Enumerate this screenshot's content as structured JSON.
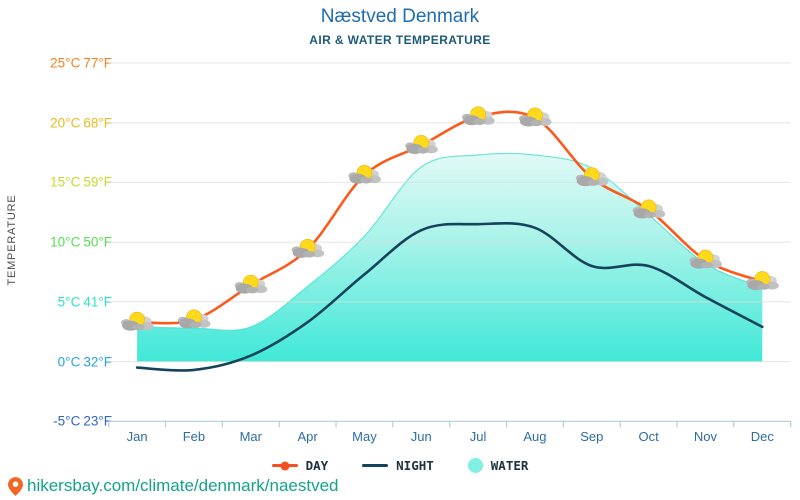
{
  "title": "Næstved Denmark",
  "subtitle": "AIR & WATER TEMPERATURE",
  "y_axis": {
    "label": "TEMPERATURE",
    "ticks": [
      {
        "celsius": "25°C",
        "fahrenheit": "77°F",
        "value": 25,
        "color": "#f5821f"
      },
      {
        "celsius": "20°C",
        "fahrenheit": "68°F",
        "value": 20,
        "color": "#eaba20"
      },
      {
        "celsius": "15°C",
        "fahrenheit": "59°F",
        "value": 15,
        "color": "#c4dc29"
      },
      {
        "celsius": "10°C",
        "fahrenheit": "50°F",
        "value": 10,
        "color": "#55df4d"
      },
      {
        "celsius": "5°C",
        "fahrenheit": "41°F",
        "value": 5,
        "color": "#2be4c5"
      },
      {
        "celsius": "0°C",
        "fahrenheit": "32°F",
        "value": 0,
        "color": "#2aa2df"
      },
      {
        "celsius": "-5°C",
        "fahrenheit": "23°F",
        "value": -5,
        "color": "#2f66c5"
      }
    ]
  },
  "legend": [
    {
      "label": "DAY",
      "type": "line-dot",
      "color": "#f4511e"
    },
    {
      "label": "NIGHT",
      "type": "line",
      "color": "#16435c"
    },
    {
      "label": "WATER",
      "type": "dot",
      "color": "#7ff0e3"
    }
  ],
  "footer": {
    "url": "hikersbay.com/climate/denmark/naestved",
    "pin_color": "#f26522"
  },
  "marker_icon": "sun-behind-cloud-icon",
  "chart_data": {
    "type": "line",
    "title": "Næstved Denmark",
    "subtitle": "AIR & WATER TEMPERATURE",
    "ylabel": "TEMPERATURE",
    "units": "°C",
    "ylim": [
      -5,
      25
    ],
    "area_baseline": 0,
    "grid": "horizontal",
    "legend_position": "bottom",
    "categories": [
      "Jan",
      "Feb",
      "Mar",
      "Apr",
      "May",
      "Jun",
      "Jul",
      "Aug",
      "Sep",
      "Oct",
      "Nov",
      "Dec"
    ],
    "series": [
      {
        "name": "DAY",
        "style": "line-markers",
        "color": "#fb5a1c",
        "values": [
          3.3,
          3.5,
          6.4,
          9.4,
          15.6,
          18.1,
          20.5,
          20.4,
          15.4,
          12.7,
          8.5,
          6.7
        ]
      },
      {
        "name": "NIGHT",
        "style": "line",
        "color": "#16435c",
        "values": [
          -0.5,
          -0.7,
          0.5,
          3.3,
          7.3,
          11.0,
          11.5,
          11.2,
          8.0,
          8.0,
          5.4,
          2.9
        ]
      },
      {
        "name": "WATER",
        "style": "area",
        "color": "#3fe8d8",
        "values": [
          2.9,
          2.8,
          2.9,
          6.3,
          10.5,
          16.3,
          17.3,
          17.3,
          16.2,
          12.3,
          8.2,
          6.2
        ]
      }
    ]
  }
}
